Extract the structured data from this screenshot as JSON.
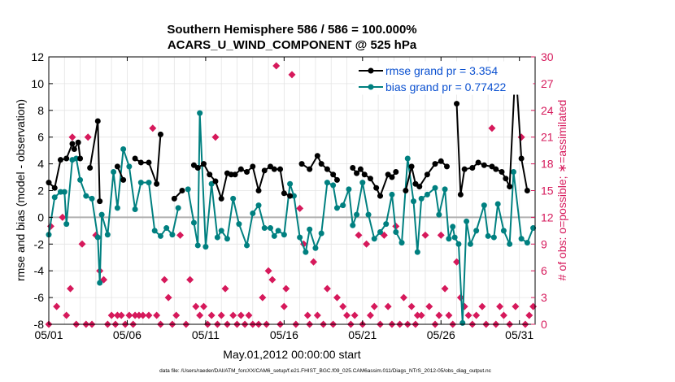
{
  "chart_data": {
    "type": "line",
    "title_line1": "Southern Hemisphere 586 / 586 = 100.000%",
    "title_line2": "ACARS_U_WIND_COMPONENT @ 525 hPa",
    "xlabel": "May.01,2012 00:00:00 start",
    "ylabel_left": "rmse and bias (model - observation)",
    "ylabel_right": "# of obs: o=possible; ∗=assimilated",
    "footer": "data file: /Users/raeder/DAI/ATM_forcXX/CAM6_setup/f.e21.FHIST_BGC.f09_025.CAM6assim.011/Diags_NTrS_2012-05/obs_diag_output.nc",
    "x_range": [
      0,
      31
    ],
    "y_left_range": [
      -8,
      12
    ],
    "y_right_range": [
      0,
      30
    ],
    "x_ticks": [
      {
        "x": 0,
        "label": "05/01"
      },
      {
        "x": 5,
        "label": "05/06"
      },
      {
        "x": 10,
        "label": "05/11"
      },
      {
        "x": 15,
        "label": "05/16"
      },
      {
        "x": 20,
        "label": "05/21"
      },
      {
        "x": 25,
        "label": "05/26"
      },
      {
        "x": 30,
        "label": "05/31"
      }
    ],
    "y_left_ticks": [
      "-8",
      "-6",
      "-4",
      "-2",
      "0",
      "2",
      "4",
      "6",
      "8",
      "10",
      "12"
    ],
    "y_right_ticks": [
      "0",
      "3",
      "6",
      "9",
      "12",
      "15",
      "18",
      "21",
      "24",
      "27",
      "30"
    ],
    "grid": true,
    "legend_position": "top-right",
    "colors": {
      "rmse": "#000000",
      "bias": "#008080",
      "obs": "#d6195b",
      "legend_text": "#0a50d0",
      "zero_line": "#b0b0b0"
    },
    "legend": [
      {
        "label": "rmse grand pr = 3.354",
        "color": "#000000"
      },
      {
        "label": "bias grand pr = 0.77422",
        "color": "#008080"
      }
    ],
    "series": [
      {
        "name": "rmse grand pr = 3.354",
        "axis": "left",
        "points": [
          [
            0.0,
            2.6
          ],
          [
            0.375,
            2.2
          ],
          [
            0.75,
            4.3
          ],
          [
            1.125,
            4.4
          ],
          [
            1.5,
            5.5
          ],
          [
            1.625,
            5.1
          ],
          [
            1.875,
            5.6
          ],
          [
            2.0,
            4.4
          ],
          [
            2.625,
            3.7
          ],
          [
            3.125,
            7.2
          ],
          [
            3.25,
            1.2
          ],
          [
            4.375,
            3.8
          ],
          [
            4.75,
            2.8
          ],
          [
            5.5,
            4.4
          ],
          [
            5.875,
            4.1
          ],
          [
            6.375,
            4.1
          ],
          [
            6.875,
            2.5
          ],
          [
            7.125,
            6.2
          ],
          [
            8.0,
            1.4
          ],
          [
            8.5,
            2.0
          ],
          [
            9.25,
            3.9
          ],
          [
            9.5,
            3.7
          ],
          [
            9.875,
            4.0
          ],
          [
            10.25,
            3.2
          ],
          [
            10.625,
            2.7
          ],
          [
            11.0,
            1.4
          ],
          [
            11.375,
            3.3
          ],
          [
            11.625,
            3.2
          ],
          [
            11.875,
            3.2
          ],
          [
            12.25,
            3.6
          ],
          [
            12.625,
            3.4
          ],
          [
            13.0,
            3.8
          ],
          [
            13.375,
            2.0
          ],
          [
            13.75,
            3.5
          ],
          [
            14.125,
            3.8
          ],
          [
            14.375,
            3.6
          ],
          [
            14.75,
            3.6
          ],
          [
            15.0,
            1.8
          ],
          [
            15.375,
            1.6
          ],
          [
            16.125,
            4.0
          ],
          [
            16.625,
            3.6
          ],
          [
            17.125,
            4.6
          ],
          [
            17.375,
            4.0
          ],
          [
            17.75,
            3.6
          ],
          [
            18.125,
            3.2
          ],
          [
            18.375,
            2.8
          ],
          [
            19.375,
            3.7
          ],
          [
            19.625,
            3.3
          ],
          [
            19.875,
            3.6
          ],
          [
            20.125,
            3.2
          ],
          [
            20.5,
            2.9
          ],
          [
            20.875,
            2.2
          ],
          [
            21.125,
            1.6
          ],
          [
            21.625,
            3.2
          ],
          [
            21.875,
            3.0
          ],
          [
            22.125,
            3.4
          ],
          [
            22.75,
            2.0
          ],
          [
            23.125,
            3.8
          ],
          [
            23.375,
            2.5
          ],
          [
            23.625,
            2.3
          ],
          [
            24.125,
            3.2
          ],
          [
            24.625,
            4.0
          ],
          [
            25.0,
            4.2
          ],
          [
            25.375,
            3.8
          ],
          [
            26.0,
            8.5
          ],
          [
            26.25,
            1.7
          ],
          [
            26.5,
            3.6
          ],
          [
            27.0,
            3.7
          ],
          [
            27.375,
            4.1
          ],
          [
            27.75,
            3.9
          ],
          [
            28.25,
            3.8
          ],
          [
            28.5,
            3.6
          ],
          [
            28.875,
            3.4
          ],
          [
            29.125,
            2.9
          ],
          [
            29.375,
            2.3
          ],
          [
            29.75,
            11.4
          ],
          [
            30.125,
            4.4
          ],
          [
            30.5,
            2.0
          ]
        ]
      },
      {
        "name": "bias grand pr = 0.77422",
        "axis": "left",
        "points": [
          [
            0.0,
            -1.3
          ],
          [
            0.375,
            1.5
          ],
          [
            0.75,
            1.9
          ],
          [
            1.0,
            1.9
          ],
          [
            1.125,
            -0.5
          ],
          [
            1.5,
            4.3
          ],
          [
            1.75,
            4.4
          ],
          [
            2.0,
            2.8
          ],
          [
            2.375,
            1.6
          ],
          [
            2.75,
            1.4
          ],
          [
            3.125,
            -1.5
          ],
          [
            3.25,
            -4.9
          ],
          [
            3.375,
            0.2
          ],
          [
            3.75,
            -1.3
          ],
          [
            4.125,
            3.4
          ],
          [
            4.375,
            0.7
          ],
          [
            4.75,
            5.1
          ],
          [
            5.125,
            3.8
          ],
          [
            5.5,
            0.6
          ],
          [
            5.875,
            2.6
          ],
          [
            6.375,
            2.6
          ],
          [
            6.75,
            -1.0
          ],
          [
            7.125,
            -1.4
          ],
          [
            7.5,
            -0.8
          ],
          [
            7.875,
            -1.3
          ],
          [
            8.25,
            0.7
          ],
          [
            8.875,
            2.1
          ],
          [
            9.25,
            -0.4
          ],
          [
            9.5,
            -2.1
          ],
          [
            9.625,
            7.8
          ],
          [
            10.0,
            -2.2
          ],
          [
            10.375,
            2.5
          ],
          [
            10.75,
            -1.5
          ],
          [
            11.0,
            -1.0
          ],
          [
            11.375,
            -1.6
          ],
          [
            11.75,
            1.4
          ],
          [
            12.125,
            -0.5
          ],
          [
            12.625,
            -2.1
          ],
          [
            13.0,
            0.3
          ],
          [
            13.375,
            0.9
          ],
          [
            13.75,
            -0.8
          ],
          [
            14.125,
            -0.8
          ],
          [
            14.375,
            -1.4
          ],
          [
            14.625,
            -1.0
          ],
          [
            15.0,
            -1.3
          ],
          [
            15.375,
            2.5
          ],
          [
            15.625,
            1.6
          ],
          [
            16.0,
            -1.5
          ],
          [
            16.375,
            -2.6
          ],
          [
            16.625,
            -0.9
          ],
          [
            17.0,
            -2.3
          ],
          [
            17.375,
            -1.2
          ],
          [
            17.75,
            2.6
          ],
          [
            18.125,
            2.4
          ],
          [
            18.375,
            0.7
          ],
          [
            18.75,
            0.9
          ],
          [
            19.125,
            2.1
          ],
          [
            19.375,
            -0.6
          ],
          [
            19.625,
            0.2
          ],
          [
            20.0,
            2.6
          ],
          [
            20.375,
            0.2
          ],
          [
            20.75,
            -1.6
          ],
          [
            21.125,
            -1.1
          ],
          [
            21.5,
            -0.5
          ],
          [
            21.875,
            1.7
          ],
          [
            22.125,
            -1.1
          ],
          [
            22.5,
            -1.9
          ],
          [
            22.875,
            4.4
          ],
          [
            23.25,
            1.2
          ],
          [
            23.5,
            -2.6
          ],
          [
            23.75,
            1.4
          ],
          [
            24.125,
            1.7
          ],
          [
            24.625,
            2.2
          ],
          [
            24.875,
            0.2
          ],
          [
            25.25,
            2.1
          ],
          [
            25.5,
            -1.6
          ],
          [
            25.75,
            -0.7
          ],
          [
            25.875,
            -1.5
          ],
          [
            26.125,
            -2.0
          ],
          [
            26.375,
            -7.9
          ],
          [
            26.625,
            -0.3
          ],
          [
            26.875,
            -2.0
          ],
          [
            27.25,
            -1.0
          ],
          [
            27.75,
            0.9
          ],
          [
            28.0,
            -1.4
          ],
          [
            28.375,
            -1.5
          ],
          [
            28.625,
            1.0
          ],
          [
            29.0,
            -1.0
          ],
          [
            29.375,
            -2.0
          ],
          [
            29.625,
            3.4
          ],
          [
            30.125,
            -1.6
          ],
          [
            30.5,
            -1.9
          ],
          [
            30.875,
            -0.8
          ]
        ]
      },
      {
        "name": "# of obs",
        "axis": "right",
        "marker": "diamond",
        "points": [
          [
            0.0,
            0
          ],
          [
            0.125,
            11
          ],
          [
            0.5,
            2
          ],
          [
            0.875,
            12
          ],
          [
            1.125,
            1
          ],
          [
            1.375,
            4
          ],
          [
            1.5,
            21
          ],
          [
            1.75,
            0
          ],
          [
            2.125,
            9
          ],
          [
            2.375,
            0
          ],
          [
            2.5,
            21
          ],
          [
            2.75,
            0
          ],
          [
            3.0,
            10
          ],
          [
            3.25,
            6
          ],
          [
            3.5,
            5
          ],
          [
            3.75,
            0
          ],
          [
            4.0,
            1
          ],
          [
            4.25,
            0
          ],
          [
            4.375,
            1
          ],
          [
            4.625,
            1
          ],
          [
            4.875,
            0
          ],
          [
            5.125,
            1
          ],
          [
            5.375,
            0
          ],
          [
            5.5,
            1
          ],
          [
            5.75,
            1
          ],
          [
            6.0,
            1
          ],
          [
            6.375,
            1
          ],
          [
            6.625,
            22
          ],
          [
            6.875,
            1
          ],
          [
            7.125,
            0
          ],
          [
            7.375,
            5
          ],
          [
            7.625,
            3
          ],
          [
            7.875,
            0
          ],
          [
            8.125,
            1
          ],
          [
            8.375,
            10
          ],
          [
            8.75,
            0
          ],
          [
            9.0,
            5
          ],
          [
            9.375,
            2
          ],
          [
            9.625,
            1
          ],
          [
            9.875,
            2
          ],
          [
            10.125,
            0
          ],
          [
            10.375,
            1
          ],
          [
            10.625,
            21
          ],
          [
            10.75,
            0
          ],
          [
            11.0,
            1
          ],
          [
            11.25,
            4
          ],
          [
            11.375,
            0
          ],
          [
            11.75,
            1
          ],
          [
            12.0,
            0
          ],
          [
            12.25,
            1
          ],
          [
            12.5,
            0
          ],
          [
            12.75,
            1
          ],
          [
            13.0,
            0
          ],
          [
            13.375,
            0
          ],
          [
            13.625,
            3
          ],
          [
            13.875,
            0
          ],
          [
            14.0,
            6
          ],
          [
            14.25,
            5
          ],
          [
            14.5,
            29
          ],
          [
            14.75,
            0
          ],
          [
            15.0,
            2
          ],
          [
            15.125,
            4
          ],
          [
            15.5,
            28
          ],
          [
            15.75,
            0
          ],
          [
            16.0,
            13
          ],
          [
            16.25,
            9
          ],
          [
            16.5,
            1
          ],
          [
            16.625,
            0
          ],
          [
            16.875,
            7
          ],
          [
            17.125,
            1
          ],
          [
            17.5,
            0
          ],
          [
            17.75,
            4
          ],
          [
            18.125,
            0
          ],
          [
            18.375,
            3
          ],
          [
            18.75,
            2
          ],
          [
            19.0,
            1
          ],
          [
            19.25,
            0
          ],
          [
            19.5,
            1
          ],
          [
            19.75,
            10
          ],
          [
            20.0,
            0
          ],
          [
            20.25,
            9
          ],
          [
            20.5,
            1
          ],
          [
            20.75,
            2
          ],
          [
            21.125,
            0
          ],
          [
            21.375,
            10
          ],
          [
            21.625,
            2
          ],
          [
            21.875,
            0
          ],
          [
            22.125,
            11
          ],
          [
            22.375,
            0
          ],
          [
            22.625,
            3
          ],
          [
            22.875,
            0
          ],
          [
            23.125,
            2
          ],
          [
            23.375,
            0
          ],
          [
            23.5,
            1
          ],
          [
            23.75,
            1
          ],
          [
            24.0,
            10
          ],
          [
            24.25,
            2
          ],
          [
            24.625,
            0
          ],
          [
            24.875,
            1
          ],
          [
            25.0,
            10
          ],
          [
            25.25,
            4
          ],
          [
            25.5,
            1
          ],
          [
            25.75,
            0
          ],
          [
            26.0,
            7
          ],
          [
            26.25,
            3
          ],
          [
            26.5,
            2
          ],
          [
            26.75,
            1
          ],
          [
            27.0,
            0
          ],
          [
            27.25,
            1
          ],
          [
            27.625,
            2
          ],
          [
            27.875,
            0
          ],
          [
            28.25,
            22
          ],
          [
            28.5,
            0
          ],
          [
            28.75,
            2
          ],
          [
            29.0,
            1
          ],
          [
            29.375,
            0
          ],
          [
            29.75,
            2
          ],
          [
            30.125,
            21
          ],
          [
            30.375,
            0
          ],
          [
            30.625,
            1
          ],
          [
            30.875,
            2
          ]
        ]
      }
    ]
  }
}
